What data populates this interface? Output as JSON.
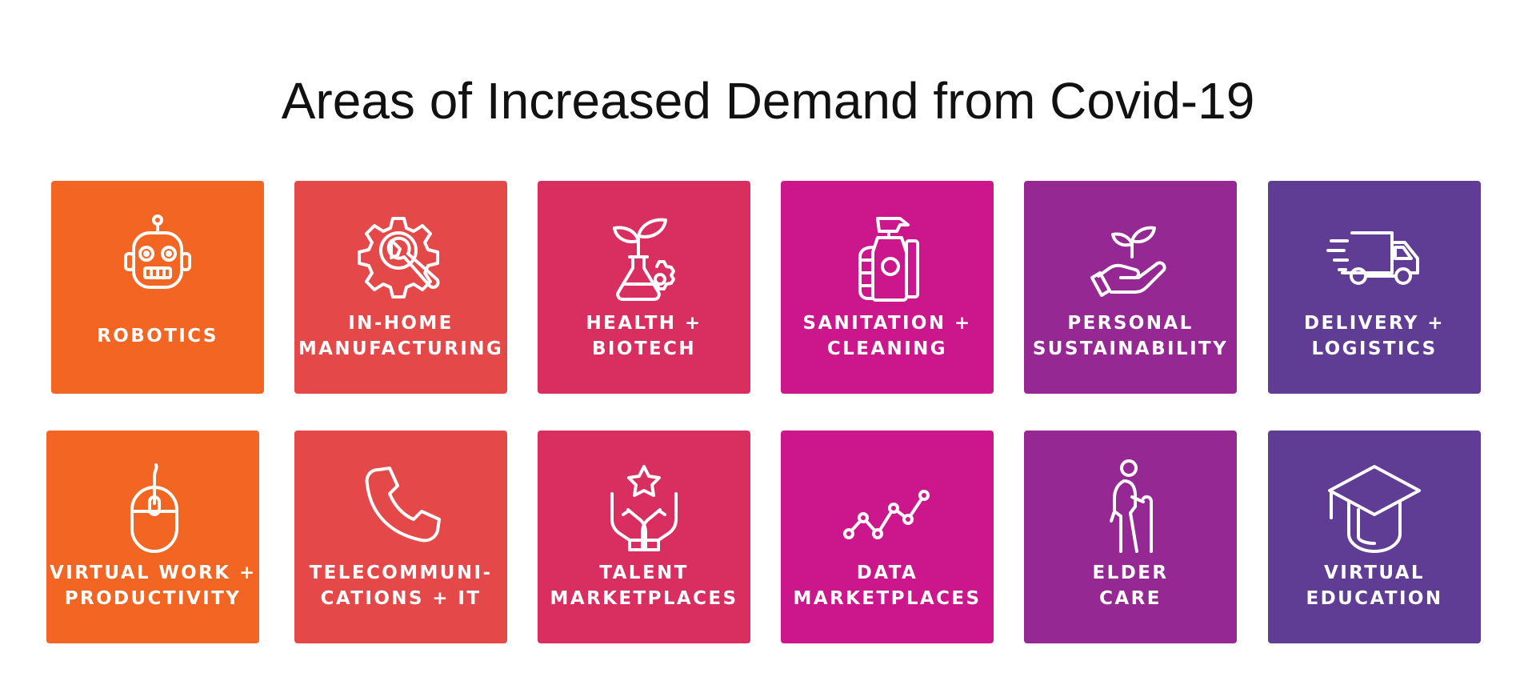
{
  "title": "Areas of Increased Demand from Covid-19",
  "tiles": [
    {
      "icon": "robot-icon",
      "color": "#f26522",
      "lines": [
        "ROBOTICS"
      ]
    },
    {
      "icon": "gear-wrench-icon",
      "color": "#e44848",
      "lines": [
        "IN-HOME",
        "MANUFACTURING"
      ]
    },
    {
      "icon": "plant-flask-icon",
      "color": "#d92f60",
      "lines": [
        "HEALTH +",
        "BIOTECH"
      ]
    },
    {
      "icon": "spray-bottle-icon",
      "color": "#cc168b",
      "lines": [
        "SANITATION +",
        "CLEANING"
      ]
    },
    {
      "icon": "hand-plant-icon",
      "color": "#962893",
      "lines": [
        "PERSONAL",
        "SUSTAINABILITY"
      ]
    },
    {
      "icon": "delivery-truck-icon",
      "color": "#5f3d95",
      "lines": [
        "DELIVERY +",
        "LOGISTICS"
      ]
    },
    {
      "icon": "computer-mouse-icon",
      "color": "#f26522",
      "lines": [
        "VIRTUAL WORK +",
        "PRODUCTIVITY"
      ]
    },
    {
      "icon": "telephone-icon",
      "color": "#e44848",
      "lines": [
        "TELECOMMUNI-",
        "CATIONS + IT"
      ]
    },
    {
      "icon": "hands-star-icon",
      "color": "#d92f60",
      "lines": [
        "TALENT",
        "MARKETPLACES"
      ]
    },
    {
      "icon": "line-graph-icon",
      "color": "#cc168b",
      "lines": [
        "DATA",
        "MARKETPLACES"
      ]
    },
    {
      "icon": "elder-walking-icon",
      "color": "#962893",
      "lines": [
        "ELDER",
        "CARE"
      ]
    },
    {
      "icon": "graduation-cap-icon",
      "color": "#5f3d95",
      "lines": [
        "VIRTUAL",
        "EDUCATION"
      ]
    }
  ]
}
